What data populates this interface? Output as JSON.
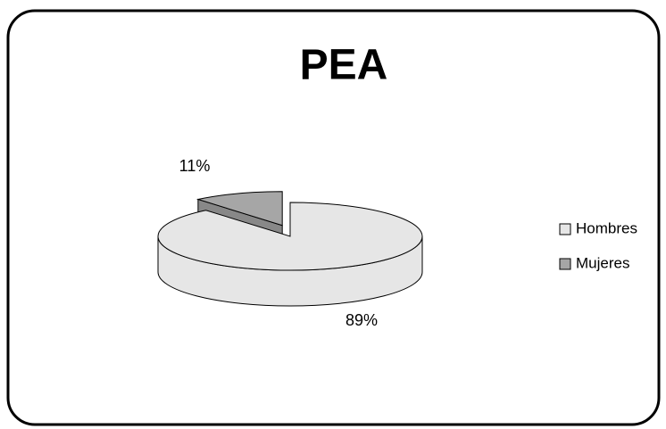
{
  "chart_data": {
    "type": "pie",
    "title": "PEA",
    "categories": [
      "Hombres",
      "Mujeres"
    ],
    "values": [
      89,
      11
    ],
    "value_labels": [
      "89%",
      "11%"
    ],
    "colors": [
      "#e6e6e6",
      "#a6a6a6"
    ],
    "legend": "right"
  }
}
